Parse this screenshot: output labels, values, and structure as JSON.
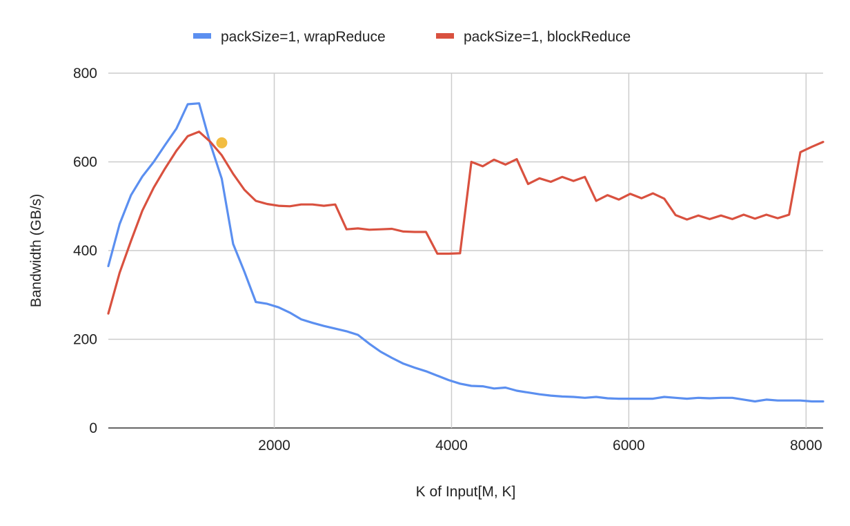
{
  "chart_data": {
    "type": "line",
    "title": "",
    "xlabel": "K of Input[M, K]",
    "ylabel": "Bandwidth (GB/s)",
    "xlim": [
      128,
      8192
    ],
    "ylim": [
      0,
      800
    ],
    "x_ticks": [
      2000,
      4000,
      6000,
      8000
    ],
    "x_tick_labels": [
      "2000",
      "4000",
      "6000",
      "8000"
    ],
    "y_ticks": [
      0,
      200,
      400,
      600,
      800
    ],
    "y_tick_labels": [
      "0",
      "200",
      "400",
      "600",
      "800"
    ],
    "grid": true,
    "legend_position": "top",
    "x": [
      128,
      256,
      384,
      512,
      640,
      768,
      896,
      1024,
      1152,
      1280,
      1408,
      1536,
      1664,
      1792,
      1920,
      2048,
      2176,
      2304,
      2432,
      2560,
      2688,
      2816,
      2944,
      3072,
      3200,
      3328,
      3456,
      3584,
      3712,
      3840,
      3968,
      4096,
      4224,
      4352,
      4480,
      4608,
      4736,
      4864,
      4992,
      5120,
      5248,
      5376,
      5504,
      5632,
      5760,
      5888,
      6016,
      6144,
      6272,
      6400,
      6528,
      6656,
      6784,
      6912,
      7040,
      7168,
      7296,
      7424,
      7552,
      7680,
      7808,
      7936,
      8064,
      8192
    ],
    "series": [
      {
        "name": "packSize=1, wrapReduce",
        "color": "#5b8ff0",
        "values": [
          365,
          460,
          525,
          567,
          600,
          638,
          675,
          730,
          732,
          640,
          562,
          415,
          352,
          284,
          280,
          272,
          260,
          245,
          237,
          230,
          224,
          218,
          210,
          190,
          172,
          158,
          145,
          136,
          128,
          118,
          108,
          100,
          95,
          94,
          89,
          91,
          84,
          80,
          76,
          73,
          71,
          70,
          68,
          70,
          67,
          66,
          66,
          66,
          66,
          70,
          68,
          66,
          68,
          67,
          68,
          68,
          64,
          60,
          64,
          62,
          62,
          62,
          60,
          60
        ]
      },
      {
        "name": "packSize=1, blockReduce",
        "color": "#d9513f",
        "values": [
          258,
          350,
          422,
          490,
          542,
          585,
          625,
          658,
          668,
          645,
          615,
          573,
          537,
          512,
          505,
          501,
          500,
          504,
          504,
          501,
          504,
          448,
          450,
          447,
          448,
          449,
          443,
          442,
          442,
          393,
          393,
          394,
          600,
          590,
          605,
          594,
          606,
          550,
          563,
          555,
          566,
          557,
          566,
          512,
          525,
          515,
          528,
          518,
          529,
          517,
          480,
          470,
          479,
          471,
          479,
          471,
          481,
          472,
          481,
          473,
          481,
          622,
          634,
          645
        ]
      }
    ],
    "annotations": [
      {
        "type": "point",
        "x": 1408,
        "y": 643,
        "color": "#f2bd42"
      }
    ]
  }
}
